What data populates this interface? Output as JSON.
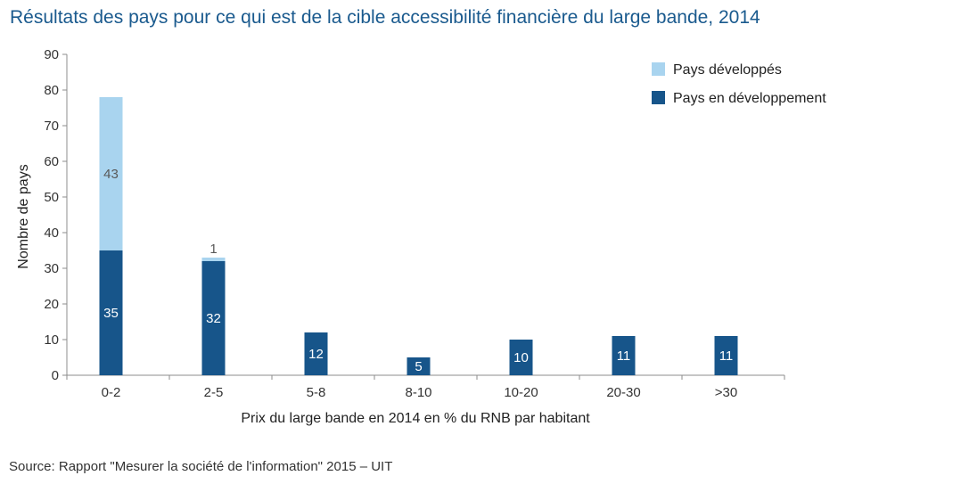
{
  "title": "Résultats des pays pour ce qui est de la cible accessibilité financière du large bande, 2014",
  "source": "Source: Rapport \"Mesurer la société de l'information\" 2015 – UIT",
  "colors": {
    "title": "#1a5a8e",
    "developed": "#a9d4ef",
    "developing": "#17558a",
    "axis": "#8c8c8c",
    "text": "#333333"
  },
  "chart_data": {
    "type": "bar",
    "stacked": true,
    "title": "Résultats des pays pour ce qui est de la cible accessibilité financière du large bande, 2014",
    "xlabel": "Prix du large bande en 2014 en % du RNB par habitant",
    "ylabel": "Nombre de pays",
    "ylim": [
      0,
      90
    ],
    "yticks": [
      0,
      10,
      20,
      30,
      40,
      50,
      60,
      70,
      80,
      90
    ],
    "grid": false,
    "legend_position": "top-right",
    "categories": [
      "0-2",
      "2-5",
      "5-8",
      "8-10",
      "10-20",
      "20-30",
      ">30"
    ],
    "series": [
      {
        "name": "Pays en développement",
        "color": "#17558a",
        "values": [
          35,
          32,
          12,
          5,
          10,
          11,
          11
        ],
        "labels": [
          "35",
          "32",
          "12",
          "5",
          "10",
          "11",
          "11"
        ]
      },
      {
        "name": "Pays développés",
        "color": "#a9d4ef",
        "values": [
          43,
          1,
          0,
          0,
          0,
          0,
          0
        ],
        "labels": [
          "43",
          "1",
          "",
          "",
          "",
          "",
          ""
        ]
      }
    ],
    "legend": [
      "Pays développés",
      "Pays en développement"
    ]
  }
}
